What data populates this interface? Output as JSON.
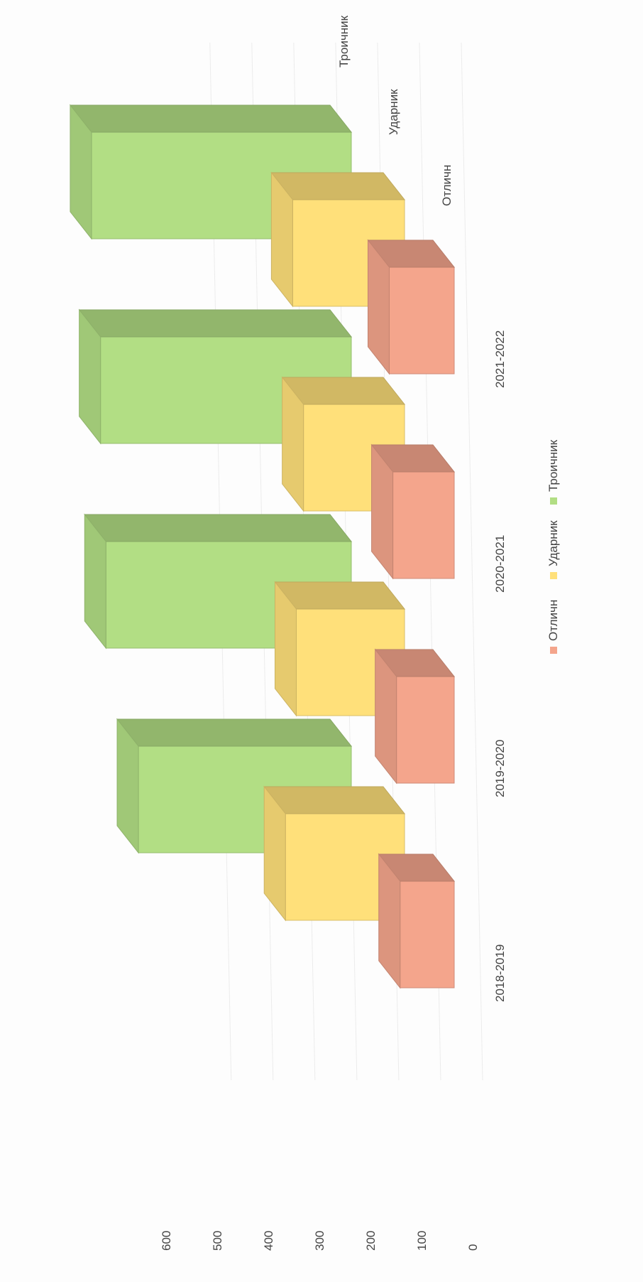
{
  "chart_data": {
    "type": "bar",
    "orientation": "3d-column-rotated",
    "categories": [
      "2018-2019",
      "2019-2020",
      "2020-2021",
      "2021-2022"
    ],
    "series": [
      {
        "name": "Отличн",
        "values": [
          150,
          160,
          170,
          180
        ],
        "color": "#f4a58c"
      },
      {
        "name": "Ударник",
        "values": [
          330,
          300,
          280,
          310
        ],
        "color": "#ffe07a"
      },
      {
        "name": "Троичник",
        "values": [
          590,
          680,
          695,
          720
        ],
        "color": "#b2de84"
      }
    ],
    "y_ticks": [
      "0",
      "100",
      "200",
      "300",
      "400",
      "500",
      "600"
    ],
    "ylim": [
      0,
      700
    ],
    "depth_labels": [
      "Троичник",
      "Ударник",
      "Отличн"
    ],
    "legend_position": "bottom",
    "grid": true
  }
}
